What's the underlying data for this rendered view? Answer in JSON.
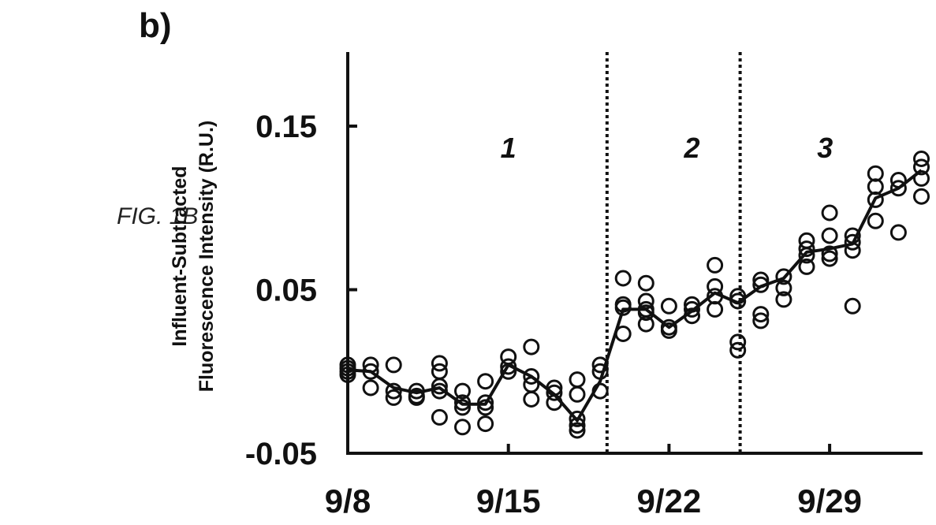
{
  "figure_label": "FIG. 1B",
  "panel_label": "b)",
  "chart_data": {
    "type": "scatter",
    "title": "",
    "xlabel": "",
    "ylabel_lines": [
      "Influent-Subtracted",
      "Fluorescence Intensity (R.U.)"
    ],
    "x_tick_labels": [
      "9/8",
      "9/15",
      "9/22",
      "9/29"
    ],
    "x_tick_values": [
      0,
      7,
      14,
      21
    ],
    "xlim": [
      0,
      25
    ],
    "y_tick_labels": [
      "0.15",
      "0.05",
      "-0.05"
    ],
    "y_tick_values": [
      0.15,
      0.05,
      -0.05
    ],
    "ylim": [
      -0.05,
      0.2
    ],
    "dividers_x": [
      11.3,
      17.1
    ],
    "regions": [
      {
        "label": "1",
        "x": 7.0
      },
      {
        "label": "2",
        "x": 15.0
      },
      {
        "label": "3",
        "x": 20.8
      }
    ],
    "series": [
      {
        "style": "open-circle-markers",
        "points": [
          [
            0,
            0.004
          ],
          [
            0,
            0.002
          ],
          [
            0,
            0.0
          ],
          [
            0,
            -0.002
          ],
          [
            1,
            0.004
          ],
          [
            1,
            0.0
          ],
          [
            1,
            -0.01
          ],
          [
            2,
            -0.012
          ],
          [
            2,
            -0.016
          ],
          [
            2,
            0.004
          ],
          [
            3,
            -0.015
          ],
          [
            3,
            -0.012
          ],
          [
            3,
            -0.016
          ],
          [
            4,
            -0.009
          ],
          [
            4,
            -0.012
          ],
          [
            4,
            0.005
          ],
          [
            4,
            -0.028
          ],
          [
            4,
            0.0
          ],
          [
            5,
            -0.019
          ],
          [
            5,
            -0.022
          ],
          [
            5,
            -0.034
          ],
          [
            5,
            -0.012
          ],
          [
            6,
            -0.019
          ],
          [
            6,
            -0.032
          ],
          [
            6,
            -0.022
          ],
          [
            6,
            -0.006
          ],
          [
            7,
            0.009
          ],
          [
            7,
            0.003
          ],
          [
            7,
            0.0
          ],
          [
            8,
            -0.003
          ],
          [
            8,
            -0.008
          ],
          [
            8,
            -0.017
          ],
          [
            8,
            0.015
          ],
          [
            9,
            -0.01
          ],
          [
            9,
            -0.019
          ],
          [
            9,
            -0.013
          ],
          [
            10,
            -0.029
          ],
          [
            10,
            -0.033
          ],
          [
            10,
            -0.036
          ],
          [
            10,
            -0.014
          ],
          [
            10,
            -0.005
          ],
          [
            11,
            -0.012
          ],
          [
            11,
            0.0
          ],
          [
            11,
            0.004
          ],
          [
            12,
            0.039
          ],
          [
            12,
            0.041
          ],
          [
            12,
            0.057
          ],
          [
            12,
            0.023
          ],
          [
            13,
            0.043
          ],
          [
            13,
            0.054
          ],
          [
            13,
            0.038
          ],
          [
            13,
            0.036
          ],
          [
            13,
            0.029
          ],
          [
            14,
            0.04
          ],
          [
            14,
            0.027
          ],
          [
            14,
            0.025
          ],
          [
            15,
            0.041
          ],
          [
            15,
            0.038
          ],
          [
            15,
            0.034
          ],
          [
            16,
            0.052
          ],
          [
            16,
            0.065
          ],
          [
            16,
            0.046
          ],
          [
            16,
            0.038
          ],
          [
            17,
            0.043
          ],
          [
            17,
            0.046
          ],
          [
            17,
            0.013
          ],
          [
            17,
            0.018
          ],
          [
            18,
            0.056
          ],
          [
            18,
            0.053
          ],
          [
            18,
            0.035
          ],
          [
            18,
            0.031
          ],
          [
            19,
            0.058
          ],
          [
            19,
            0.051
          ],
          [
            19,
            0.044
          ],
          [
            20,
            0.08
          ],
          [
            20,
            0.075
          ],
          [
            20,
            0.064
          ],
          [
            20,
            0.071
          ],
          [
            21,
            0.083
          ],
          [
            21,
            0.072
          ],
          [
            21,
            0.097
          ],
          [
            21,
            0.069
          ],
          [
            22,
            0.074
          ],
          [
            22,
            0.079
          ],
          [
            22,
            0.083
          ],
          [
            22,
            0.04
          ],
          [
            23,
            0.105
          ],
          [
            23,
            0.113
          ],
          [
            23,
            0.121
          ],
          [
            23,
            0.092
          ],
          [
            24,
            0.117
          ],
          [
            24,
            0.112
          ],
          [
            24,
            0.085
          ],
          [
            25,
            0.13
          ],
          [
            25,
            0.118
          ],
          [
            25,
            0.125
          ],
          [
            25,
            0.107
          ]
        ]
      },
      {
        "style": "line",
        "points": [
          [
            0,
            0.001
          ],
          [
            1,
            0.0
          ],
          [
            2,
            -0.01
          ],
          [
            3,
            -0.013
          ],
          [
            4,
            -0.01
          ],
          [
            5,
            -0.02
          ],
          [
            6,
            -0.02
          ],
          [
            7,
            0.004
          ],
          [
            8,
            -0.003
          ],
          [
            9,
            -0.014
          ],
          [
            10,
            -0.03
          ],
          [
            11,
            -0.006
          ],
          [
            12,
            0.038
          ],
          [
            13,
            0.038
          ],
          [
            14,
            0.027
          ],
          [
            15,
            0.037
          ],
          [
            16,
            0.048
          ],
          [
            17,
            0.042
          ],
          [
            18,
            0.052
          ],
          [
            19,
            0.057
          ],
          [
            20,
            0.073
          ],
          [
            21,
            0.075
          ],
          [
            22,
            0.078
          ],
          [
            23,
            0.106
          ],
          [
            24,
            0.112
          ],
          [
            25,
            0.123
          ]
        ]
      }
    ]
  }
}
